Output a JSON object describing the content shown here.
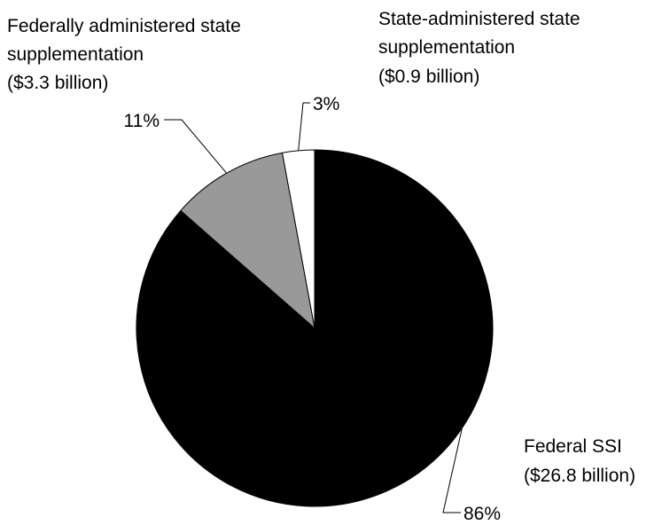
{
  "chart_data": {
    "type": "pie",
    "title": "",
    "slices": [
      {
        "name_lines": [
          "Federal SSI",
          "($26.8 billion)"
        ],
        "value": 26.8,
        "percent_label": "86%",
        "color": "#000000"
      },
      {
        "name_lines": [
          "Federally administered state",
          "supplementation",
          "($3.3 billion)"
        ],
        "value": 3.3,
        "percent_label": "11%",
        "color": "#999999"
      },
      {
        "name_lines": [
          "State-administered state",
          "supplementation",
          "($0.9 billion)"
        ],
        "value": 0.9,
        "percent_label": "3%",
        "color": "#ffffff"
      }
    ],
    "start_angle": "12 o'clock",
    "direction": "clockwise"
  }
}
